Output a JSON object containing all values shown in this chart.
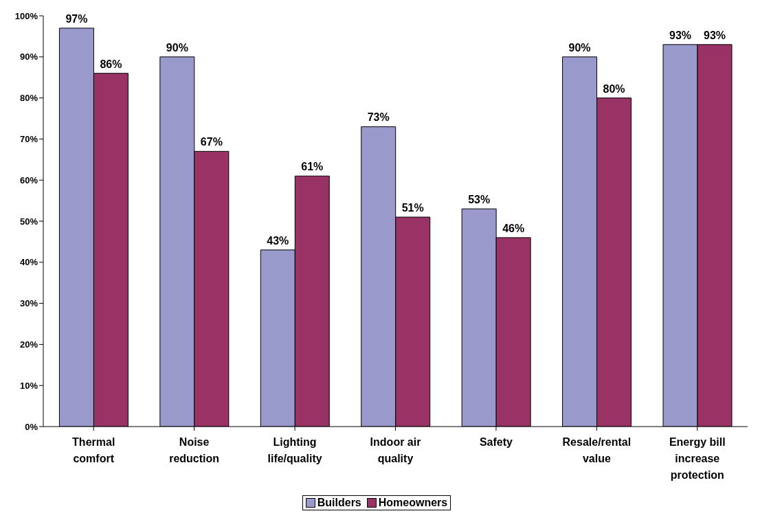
{
  "chart_data": {
    "type": "bar",
    "categories": [
      "Thermal comfort",
      "Noise reduction",
      "Lighting life/quality",
      "Indoor air quality",
      "Safety",
      "Resale/rental value",
      "Energy bill increase protection"
    ],
    "series": [
      {
        "name": "Builders",
        "color": "#9999cc",
        "values": [
          97,
          90,
          43,
          73,
          53,
          90,
          93
        ],
        "value_labels": [
          "97%",
          "90%",
          "43%",
          "73%",
          "53%",
          "90%",
          "93%"
        ]
      },
      {
        "name": "Homeowners",
        "color": "#993366",
        "values": [
          86,
          67,
          61,
          51,
          46,
          80,
          93
        ],
        "value_labels": [
          "86%",
          "67%",
          "61%",
          "51%",
          "46%",
          "80%",
          "93%"
        ]
      }
    ],
    "ylim": [
      0,
      100
    ],
    "yticks": [
      {
        "value": 0,
        "label": "0%"
      },
      {
        "value": 10,
        "label": "10%"
      },
      {
        "value": 20,
        "label": "20%"
      },
      {
        "value": 30,
        "label": "30%"
      },
      {
        "value": 40,
        "label": "40%"
      },
      {
        "value": 50,
        "label": "50%"
      },
      {
        "value": 60,
        "label": "60%"
      },
      {
        "value": 70,
        "label": "70%"
      },
      {
        "value": 80,
        "label": "80%"
      },
      {
        "value": 90,
        "label": "90%"
      },
      {
        "value": 100,
        "label": "100%"
      }
    ],
    "grid": false,
    "legend": "bottom"
  }
}
